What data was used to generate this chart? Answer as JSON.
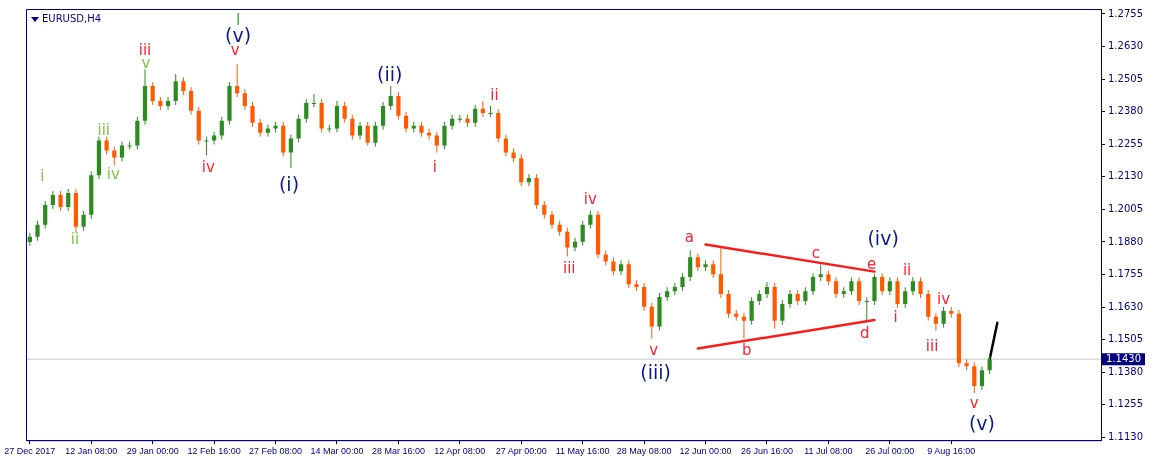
{
  "chart_data": {
    "type": "candlestick",
    "title": "EURUSD,H4",
    "categories": [
      "27 Dec 2017",
      null,
      null,
      null,
      null,
      null,
      null,
      null,
      "12 Jan 08:00",
      null,
      null,
      null,
      null,
      null,
      null,
      null,
      "29 Jan 00:00",
      null,
      null,
      null,
      null,
      null,
      null,
      null,
      "12 Feb 16:00",
      null,
      null,
      null,
      null,
      null,
      null,
      null,
      "27 Feb 08:00",
      null,
      null,
      null,
      null,
      null,
      null,
      null,
      "14 Mar 00:00",
      null,
      null,
      null,
      null,
      null,
      null,
      null,
      "28 Mar 16:00",
      null,
      null,
      null,
      null,
      null,
      null,
      null,
      "12 Apr 08:00",
      null,
      null,
      null,
      null,
      null,
      null,
      null,
      "27 Apr 00:00",
      null,
      null,
      null,
      null,
      null,
      null,
      null,
      "11 May 16:00",
      null,
      null,
      null,
      null,
      null,
      null,
      null,
      "28 May 08:00",
      null,
      null,
      null,
      null,
      null,
      null,
      null,
      "12 Jun 00:00",
      null,
      null,
      null,
      null,
      null,
      null,
      null,
      "26 Jun 16:00",
      null,
      null,
      null,
      null,
      null,
      null,
      null,
      "11 Jul 08:00",
      null,
      null,
      null,
      null,
      null,
      null,
      null,
      "26 Jul 00:00",
      null,
      null,
      null,
      null,
      null,
      null,
      null,
      "9 Aug 16:00",
      null,
      null,
      null,
      null,
      null,
      null,
      null,
      null,
      null,
      null,
      null,
      null,
      null,
      null,
      null,
      null,
      null,
      null,
      null
    ],
    "ohlc": [
      [
        1.188,
        1.1915,
        1.1865,
        1.19
      ],
      [
        1.19,
        1.1961,
        1.1885,
        1.1946
      ],
      [
        1.1946,
        1.2037,
        1.1931,
        1.2022
      ],
      [
        1.2022,
        1.2075,
        1.2007,
        1.206
      ],
      [
        1.206,
        1.2075,
        1.1999,
        1.2014
      ],
      [
        1.2014,
        1.2083,
        1.1999,
        1.2068
      ],
      [
        1.2068,
        1.2083,
        1.1916,
        1.1938
      ],
      [
        1.1938,
        1.1999,
        1.1923,
        1.1984
      ],
      [
        1.1984,
        1.2151,
        1.1969,
        1.2136
      ],
      [
        1.2136,
        1.2284,
        1.2121,
        1.2269
      ],
      [
        1.2269,
        1.2284,
        1.2216,
        1.2231
      ],
      [
        1.2231,
        1.2246,
        1.2174,
        1.2204
      ],
      [
        1.2204,
        1.2265,
        1.2189,
        1.225
      ],
      [
        1.225,
        1.2265,
        1.2235,
        1.225
      ],
      [
        1.225,
        1.236,
        1.2235,
        1.2345
      ],
      [
        1.2345,
        1.2543,
        1.233,
        1.2478
      ],
      [
        1.2478,
        1.2493,
        1.2406,
        1.2421
      ],
      [
        1.2421,
        1.2436,
        1.2387,
        1.2402
      ],
      [
        1.2402,
        1.2436,
        1.2387,
        1.2421
      ],
      [
        1.2421,
        1.2524,
        1.2406,
        1.2497
      ],
      [
        1.2497,
        1.2512,
        1.2444,
        1.2459
      ],
      [
        1.2459,
        1.2474,
        1.2368,
        1.2383
      ],
      [
        1.2383,
        1.2398,
        1.2254,
        1.2269
      ],
      [
        1.2269,
        1.2284,
        1.2212,
        1.2269
      ],
      [
        1.2269,
        1.2303,
        1.2254,
        1.2288
      ],
      [
        1.2288,
        1.236,
        1.2273,
        1.2345
      ],
      [
        1.2345,
        1.2493,
        1.233,
        1.2478
      ],
      [
        1.2478,
        1.2562,
        1.2436,
        1.2451
      ],
      [
        1.2451,
        1.2466,
        1.2387,
        1.2402
      ],
      [
        1.2402,
        1.2417,
        1.2322,
        1.2337
      ],
      [
        1.2337,
        1.2352,
        1.2284,
        1.2299
      ],
      [
        1.2299,
        1.233,
        1.2284,
        1.2315
      ],
      [
        1.2315,
        1.2341,
        1.23,
        1.2326
      ],
      [
        1.2326,
        1.2341,
        1.2208,
        1.2223
      ],
      [
        1.2223,
        1.2292,
        1.2163,
        1.2277
      ],
      [
        1.2277,
        1.2368,
        1.2262,
        1.2353
      ],
      [
        1.2353,
        1.2428,
        1.2338,
        1.2413
      ],
      [
        1.2413,
        1.2448,
        1.2398,
        1.2413
      ],
      [
        1.2413,
        1.2428,
        1.23,
        1.2315
      ],
      [
        1.2315,
        1.233,
        1.23,
        1.2315
      ],
      [
        1.2315,
        1.2421,
        1.23,
        1.2402
      ],
      [
        1.2402,
        1.2417,
        1.2338,
        1.2353
      ],
      [
        1.2353,
        1.2368,
        1.2273,
        1.2288
      ],
      [
        1.2288,
        1.2341,
        1.2273,
        1.2326
      ],
      [
        1.2326,
        1.2341,
        1.225,
        1.2261
      ],
      [
        1.2261,
        1.2341,
        1.2246,
        1.2326
      ],
      [
        1.2326,
        1.2417,
        1.2311,
        1.2402
      ],
      [
        1.2402,
        1.2478,
        1.2387,
        1.244
      ],
      [
        1.244,
        1.2455,
        1.2349,
        1.2364
      ],
      [
        1.2364,
        1.2379,
        1.23,
        1.2315
      ],
      [
        1.2315,
        1.2341,
        1.23,
        1.2326
      ],
      [
        1.2326,
        1.2341,
        1.2284,
        1.2299
      ],
      [
        1.2299,
        1.2314,
        1.2273,
        1.2288
      ],
      [
        1.2288,
        1.2303,
        1.2223,
        1.225
      ],
      [
        1.225,
        1.2341,
        1.2235,
        1.2326
      ],
      [
        1.2326,
        1.2368,
        1.2311,
        1.2353
      ],
      [
        1.2353,
        1.2368,
        1.2338,
        1.2353
      ],
      [
        1.2353,
        1.2368,
        1.2322,
        1.2337
      ],
      [
        1.2337,
        1.2406,
        1.2322,
        1.2391
      ],
      [
        1.2391,
        1.2421,
        1.236,
        1.2375
      ],
      [
        1.2375,
        1.2402,
        1.236,
        1.2375
      ],
      [
        1.2375,
        1.239,
        1.2262,
        1.2277
      ],
      [
        1.2277,
        1.2292,
        1.2208,
        1.2223
      ],
      [
        1.2223,
        1.2238,
        1.2186,
        1.2201
      ],
      [
        1.2201,
        1.2216,
        1.2094,
        1.2109
      ],
      [
        1.2109,
        1.214,
        1.2094,
        1.2125
      ],
      [
        1.2125,
        1.214,
        1.2007,
        1.2022
      ],
      [
        1.2022,
        1.2037,
        1.1969,
        1.1984
      ],
      [
        1.1984,
        1.1999,
        1.1931,
        1.1946
      ],
      [
        1.1946,
        1.1961,
        1.1904,
        1.1919
      ],
      [
        1.1919,
        1.1934,
        1.1824,
        1.1859
      ],
      [
        1.1859,
        1.1896,
        1.1844,
        1.1881
      ],
      [
        1.1881,
        1.1961,
        1.1866,
        1.1946
      ],
      [
        1.1946,
        1.2,
        1.1931,
        1.1984
      ],
      [
        1.1984,
        1.1999,
        1.1817,
        1.1832
      ],
      [
        1.1832,
        1.1847,
        1.179,
        1.1805
      ],
      [
        1.1805,
        1.182,
        1.1752,
        1.1767
      ],
      [
        1.1767,
        1.1809,
        1.1752,
        1.1794
      ],
      [
        1.1794,
        1.1809,
        1.1703,
        1.1718
      ],
      [
        1.1718,
        1.1733,
        1.1692,
        1.1707
      ],
      [
        1.1707,
        1.1722,
        1.1616,
        1.1631
      ],
      [
        1.1631,
        1.1646,
        1.1509,
        1.1555
      ],
      [
        1.1555,
        1.1684,
        1.154,
        1.1669
      ],
      [
        1.1669,
        1.1706,
        1.1654,
        1.1691
      ],
      [
        1.1691,
        1.1722,
        1.1676,
        1.1707
      ],
      [
        1.1707,
        1.176,
        1.1692,
        1.1745
      ],
      [
        1.1745,
        1.1848,
        1.173,
        1.1821
      ],
      [
        1.1821,
        1.1836,
        1.1768,
        1.1783
      ],
      [
        1.1783,
        1.1809,
        1.1768,
        1.1794
      ],
      [
        1.1794,
        1.1809,
        1.1741,
        1.1756
      ],
      [
        1.1756,
        1.1859,
        1.1665,
        1.168
      ],
      [
        1.168,
        1.1695,
        1.1589,
        1.1604
      ],
      [
        1.1604,
        1.1619,
        1.1578,
        1.1593
      ],
      [
        1.1593,
        1.1608,
        1.1509,
        1.1577
      ],
      [
        1.1577,
        1.1668,
        1.1562,
        1.1653
      ],
      [
        1.1653,
        1.1695,
        1.1638,
        1.168
      ],
      [
        1.168,
        1.1726,
        1.1665,
        1.1707
      ],
      [
        1.1707,
        1.1722,
        1.1547,
        1.1577
      ],
      [
        1.1577,
        1.1657,
        1.1562,
        1.1642
      ],
      [
        1.1642,
        1.1695,
        1.1627,
        1.168
      ],
      [
        1.168,
        1.1695,
        1.1638,
        1.1653
      ],
      [
        1.1653,
        1.1706,
        1.1638,
        1.1691
      ],
      [
        1.1691,
        1.176,
        1.1676,
        1.1745
      ],
      [
        1.1745,
        1.1794,
        1.173,
        1.1756
      ],
      [
        1.1756,
        1.1771,
        1.1714,
        1.1729
      ],
      [
        1.1729,
        1.1744,
        1.1665,
        1.168
      ],
      [
        1.168,
        1.1706,
        1.1665,
        1.1691
      ],
      [
        1.1691,
        1.1744,
        1.1676,
        1.1729
      ],
      [
        1.1729,
        1.1744,
        1.1638,
        1.1653
      ],
      [
        1.1653,
        1.1668,
        1.1577,
        1.1653
      ],
      [
        1.1653,
        1.1756,
        1.1638,
        1.1745
      ],
      [
        1.1745,
        1.176,
        1.1676,
        1.1691
      ],
      [
        1.1691,
        1.1744,
        1.1676,
        1.1729
      ],
      [
        1.1729,
        1.1744,
        1.1627,
        1.1642
      ],
      [
        1.1642,
        1.1706,
        1.1627,
        1.1691
      ],
      [
        1.1691,
        1.1745,
        1.1676,
        1.1729
      ],
      [
        1.1729,
        1.1744,
        1.1665,
        1.168
      ],
      [
        1.168,
        1.1695,
        1.1578,
        1.1593
      ],
      [
        1.1593,
        1.1608,
        1.1539,
        1.1566
      ],
      [
        1.1566,
        1.1631,
        1.1551,
        1.1615
      ],
      [
        1.1615,
        1.163,
        1.1589,
        1.1604
      ],
      [
        1.1604,
        1.1619,
        1.1399,
        1.1414
      ],
      [
        1.1414,
        1.1429,
        1.1388,
        1.1403
      ],
      [
        1.1403,
        1.1418,
        1.13,
        1.1327
      ],
      [
        1.1327,
        1.1402,
        1.1312,
        1.1387
      ],
      [
        1.1387,
        1.1445,
        1.1372,
        1.143
      ],
      null,
      null,
      null,
      null,
      null,
      null,
      null,
      null,
      null,
      null,
      null,
      null,
      null,
      null
    ],
    "colors": [
      "#2e8b22",
      "#2e8b22",
      "#2e8b22",
      "#2e8b22",
      "#ff5a00",
      "#2e8b22",
      "#ff5a00",
      "#2e8b22",
      "#2e8b22",
      "#2e8b22",
      "#ff5a00",
      "#ff5a00",
      "#2e8b22",
      "#2e8b22",
      "#2e8b22",
      "#2e8b22",
      "#ff5a00",
      "#ff5a00",
      "#2e8b22",
      "#2e8b22",
      "#ff5a00",
      "#ff5a00",
      "#ff5a00",
      "#2e8b22",
      "#2e8b22",
      "#2e8b22",
      "#2e8b22",
      "#ff5a00",
      "#ff5a00",
      "#ff5a00",
      "#ff5a00",
      "#2e8b22",
      "#2e8b22",
      "#ff5a00",
      "#2e8b22",
      "#2e8b22",
      "#2e8b22",
      "#2e8b22",
      "#ff5a00",
      "#2e8b22",
      "#2e8b22",
      "#ff5a00",
      "#ff5a00",
      "#2e8b22",
      "#ff5a00",
      "#2e8b22",
      "#2e8b22",
      "#2e8b22",
      "#ff5a00",
      "#ff5a00",
      "#2e8b22",
      "#ff5a00",
      "#ff5a00",
      "#ff5a00",
      "#2e8b22",
      "#2e8b22",
      "#2e8b22",
      "#ff5a00",
      "#2e8b22",
      "#ff5a00",
      "#2e8b22",
      "#ff5a00",
      "#ff5a00",
      "#ff5a00",
      "#ff5a00",
      "#2e8b22",
      "#ff5a00",
      "#ff5a00",
      "#ff5a00",
      "#ff5a00",
      "#ff5a00",
      "#2e8b22",
      "#2e8b22",
      "#2e8b22",
      "#ff5a00",
      "#ff5a00",
      "#ff5a00",
      "#2e8b22",
      "#ff5a00",
      "#ff5a00",
      "#ff5a00",
      "#ff5a00",
      "#2e8b22",
      "#2e8b22",
      "#2e8b22",
      "#2e8b22",
      "#2e8b22",
      "#ff5a00",
      "#2e8b22",
      "#ff5a00",
      "#ff5a00",
      "#ff5a00",
      "#ff5a00",
      "#ff5a00",
      "#2e8b22",
      "#2e8b22",
      "#2e8b22",
      "#ff5a00",
      "#2e8b22",
      "#2e8b22",
      "#ff5a00",
      "#2e8b22",
      "#2e8b22",
      "#2e8b22",
      "#ff5a00",
      "#ff5a00",
      "#2e8b22",
      "#2e8b22",
      "#ff5a00",
      "#2e8b22",
      "#2e8b22",
      "#ff5a00",
      "#2e8b22",
      "#ff5a00",
      "#2e8b22",
      "#2e8b22",
      "#ff5a00",
      "#ff5a00",
      "#ff5a00",
      "#2e8b22",
      "#ff5a00",
      "#ff5a00",
      "#ff5a00",
      "#ff5a00",
      "#2e8b22",
      "#2e8b22",
      null,
      null,
      null,
      null,
      null,
      null,
      null,
      null,
      null,
      null,
      null,
      null,
      null,
      null
    ],
    "series": [
      {
        "type": "line",
        "color": "#ff1a1a",
        "values": [
          null,
          null,
          null,
          null,
          null,
          null,
          null,
          null,
          null,
          null,
          null,
          null,
          null,
          null,
          null,
          null,
          null,
          null,
          null,
          null,
          null,
          null,
          null,
          null,
          null,
          null,
          null,
          null,
          null,
          null,
          null,
          null,
          null,
          null,
          null,
          null,
          null,
          null,
          null,
          null,
          null,
          null,
          null,
          null,
          null,
          null,
          null,
          null,
          null,
          null,
          null,
          null,
          null,
          null,
          null,
          null,
          null,
          null,
          null,
          null,
          null,
          null,
          null,
          null,
          null,
          null,
          null,
          null,
          null,
          null,
          null,
          null,
          null,
          null,
          null,
          null,
          null,
          null,
          null,
          null,
          null,
          null,
          null,
          null,
          null,
          null,
          null,
          null,
          1.187,
          null,
          null,
          null,
          null,
          null,
          null,
          null,
          null,
          null,
          null,
          null,
          null,
          null,
          null,
          null,
          null,
          null,
          null,
          null,
          null,
          null,
          1.1766,
          null,
          null,
          null,
          null,
          null,
          null,
          null,
          null,
          null,
          null,
          null,
          null,
          null,
          null,
          null,
          null,
          null,
          null,
          null,
          null,
          null,
          null,
          null,
          null,
          null,
          null,
          null,
          null,
          null
        ]
      },
      {
        "type": "line",
        "color": "#ff1a1a",
        "values": [
          null,
          null,
          null,
          null,
          null,
          null,
          null,
          null,
          null,
          null,
          null,
          null,
          null,
          null,
          null,
          null,
          null,
          null,
          null,
          null,
          null,
          null,
          null,
          null,
          null,
          null,
          null,
          null,
          null,
          null,
          null,
          null,
          null,
          null,
          null,
          null,
          null,
          null,
          null,
          null,
          null,
          null,
          null,
          null,
          null,
          null,
          null,
          null,
          null,
          null,
          null,
          null,
          null,
          null,
          null,
          null,
          null,
          null,
          null,
          null,
          null,
          null,
          null,
          null,
          null,
          null,
          null,
          null,
          null,
          null,
          null,
          null,
          null,
          null,
          null,
          null,
          null,
          null,
          null,
          null,
          null,
          null,
          null,
          null,
          null,
          null,
          null,
          1.1471,
          null,
          null,
          null,
          null,
          null,
          null,
          null,
          null,
          null,
          null,
          null,
          null,
          null,
          null,
          null,
          null,
          null,
          null,
          null,
          null,
          null,
          null,
          1.158,
          null,
          null,
          null,
          null,
          null,
          null,
          null,
          null,
          null,
          null,
          null,
          null,
          null,
          null,
          null,
          null,
          null,
          null,
          null,
          null,
          null,
          null,
          null,
          null,
          null,
          null,
          null,
          null,
          null
        ]
      },
      {
        "type": "line",
        "color": "#000000",
        "values": [
          null,
          null,
          null,
          null,
          null,
          null,
          null,
          null,
          null,
          null,
          null,
          null,
          null,
          null,
          null,
          null,
          null,
          null,
          null,
          null,
          null,
          null,
          null,
          null,
          null,
          null,
          null,
          null,
          null,
          null,
          null,
          null,
          null,
          null,
          null,
          null,
          null,
          null,
          null,
          null,
          null,
          null,
          null,
          null,
          null,
          null,
          null,
          null,
          null,
          null,
          null,
          null,
          null,
          null,
          null,
          null,
          null,
          null,
          null,
          null,
          null,
          null,
          null,
          null,
          null,
          null,
          null,
          null,
          null,
          null,
          null,
          null,
          null,
          null,
          null,
          null,
          null,
          null,
          null,
          null,
          null,
          null,
          null,
          null,
          null,
          null,
          null,
          null,
          null,
          null,
          null,
          null,
          null,
          null,
          null,
          null,
          null,
          null,
          null,
          null,
          null,
          null,
          null,
          null,
          null,
          null,
          null,
          null,
          null,
          null,
          null,
          null,
          null,
          null,
          null,
          null,
          null,
          null,
          null,
          null,
          null,
          null,
          null,
          null,
          null,
          1.143,
          1.157,
          null,
          null,
          null,
          null,
          null,
          null,
          null,
          null,
          null,
          null,
          null,
          null,
          null
        ]
      }
    ],
    "ylim": [
      1.1119,
      1.2774
    ],
    "yticks": [
      {
        "value": 1.113,
        "label": "1.1130"
      },
      {
        "value": 1.1255,
        "label": "1.1255"
      },
      {
        "value": 1.138,
        "label": "1.1380"
      },
      {
        "value": 1.1505,
        "label": "1.1505"
      },
      {
        "value": 1.163,
        "label": "1.1630"
      },
      {
        "value": 1.1755,
        "label": "1.1755"
      },
      {
        "value": 1.188,
        "label": "1.1880"
      },
      {
        "value": 1.2005,
        "label": "1.2005"
      },
      {
        "value": 1.213,
        "label": "1.2130"
      },
      {
        "value": 1.2255,
        "label": "1.2255"
      },
      {
        "value": 1.238,
        "label": "1.2380"
      },
      {
        "value": 1.2505,
        "label": "1.2505"
      },
      {
        "value": 1.263,
        "label": "1.2630"
      },
      {
        "value": 1.2755,
        "label": "1.2755"
      }
    ],
    "ref_lines": [
      {
        "axis": "y",
        "value": 1.143,
        "label": "1.1430",
        "color": "#c8c8c8"
      }
    ],
    "annotations": [
      "i",
      "ii",
      "iii",
      "iv",
      "v",
      "I",
      "iii",
      "iv",
      "v",
      "i",
      "ii",
      "iii",
      "iv",
      "v",
      "a",
      "b",
      "c",
      "d",
      "e",
      "i",
      "ii",
      "iii",
      "iv",
      "v",
      "(v)",
      "(i)",
      "(ii)",
      "(iii)",
      "(iv)",
      "(v)"
    ]
  }
}
